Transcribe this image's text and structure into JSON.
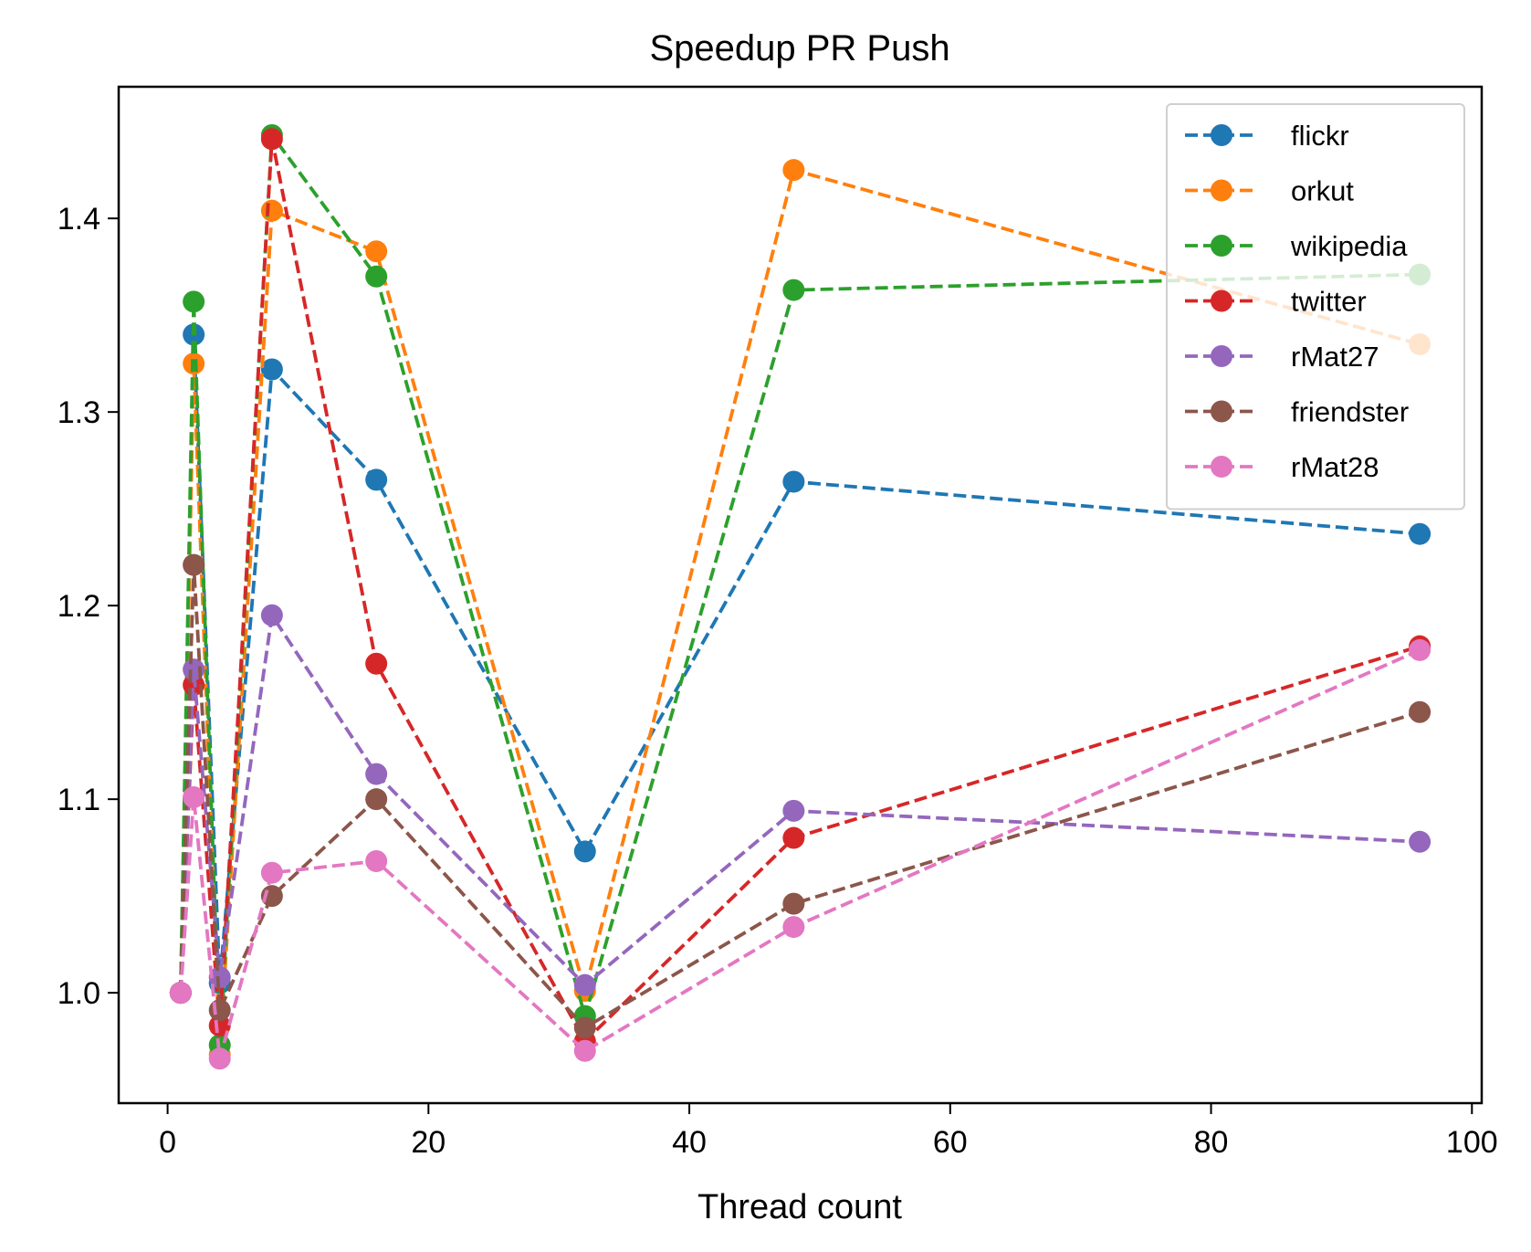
{
  "chart_data": {
    "type": "line",
    "title": "Speedup PR Push",
    "xlabel": "Thread count",
    "ylabel": "",
    "xlim": [
      -3.75,
      100.75
    ],
    "ylim": [
      0.943,
      1.468
    ],
    "xticks": [
      0,
      20,
      40,
      60,
      80,
      100
    ],
    "yticks": [
      1.0,
      1.1,
      1.2,
      1.3,
      1.4
    ],
    "grid": false,
    "legend_position": "top-right",
    "line_style": "dashed",
    "marker": "circle",
    "x": [
      1,
      2,
      4,
      8,
      16,
      32,
      48,
      96
    ],
    "series": [
      {
        "name": "flickr",
        "color": "#1f77b4",
        "values": [
          1.0,
          1.34,
          1.005,
          1.322,
          1.265,
          1.073,
          1.264,
          1.237
        ]
      },
      {
        "name": "orkut",
        "color": "#ff7f0e",
        "values": [
          1.0,
          1.325,
          0.968,
          1.404,
          1.383,
          1.001,
          1.425,
          1.335
        ]
      },
      {
        "name": "wikipedia",
        "color": "#2ca02c",
        "values": [
          1.0,
          1.357,
          0.973,
          1.443,
          1.37,
          0.988,
          1.363,
          1.371
        ]
      },
      {
        "name": "twitter",
        "color": "#d62728",
        "values": [
          1.0,
          1.159,
          0.983,
          1.441,
          1.17,
          0.975,
          1.08,
          1.179
        ]
      },
      {
        "name": "rMat27",
        "color": "#9467bd",
        "values": [
          1.0,
          1.167,
          1.008,
          1.195,
          1.113,
          1.004,
          1.094,
          1.078
        ]
      },
      {
        "name": "friendster",
        "color": "#8c564b",
        "values": [
          1.0,
          1.221,
          0.991,
          1.05,
          1.1,
          0.982,
          1.046,
          1.145
        ]
      },
      {
        "name": "rMat28",
        "color": "#e377c2",
        "values": [
          1.0,
          1.101,
          0.966,
          1.062,
          1.068,
          0.97,
          1.034,
          1.177
        ]
      }
    ]
  }
}
